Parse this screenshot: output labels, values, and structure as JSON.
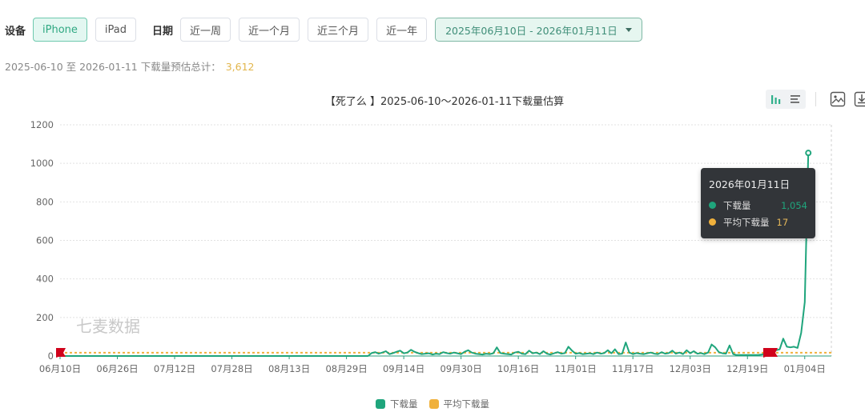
{
  "filters": {
    "device_label": "设备",
    "devices": [
      {
        "label": "iPhone",
        "active": true
      },
      {
        "label": "iPad",
        "active": false
      }
    ],
    "date_label": "日期",
    "date_presets": [
      {
        "label": "近一周"
      },
      {
        "label": "近一个月"
      },
      {
        "label": "近三个月"
      },
      {
        "label": "近一年"
      }
    ],
    "date_range": "2025年06月10日 - 2026年01月11日"
  },
  "summary": {
    "text": "2025-06-10 至 2026-01-11 下载量预估总计：",
    "total": "3,612"
  },
  "toolbar": {
    "icons": [
      "bar-chart-icon",
      "list-icon",
      "image-icon",
      "download-icon"
    ]
  },
  "tooltip": {
    "date": "2026年01月11日",
    "rows": [
      {
        "label": "下载量",
        "value": "1,054",
        "color": "#1fa57c"
      },
      {
        "label": "平均下载量",
        "value": "17",
        "color": "#f0b13c"
      }
    ]
  },
  "watermark": "七麦数据",
  "colors": {
    "downloads": "#1fa57c",
    "average": "#f0b13c",
    "accent": "#2fa882",
    "flag": "#d0021b"
  },
  "chart_data": {
    "type": "line",
    "title": "【死了么 】2025-06-10～2026-01-11下载量估算",
    "xlabel": "",
    "ylabel": "",
    "ylim": [
      0,
      1200
    ],
    "yticks": [
      0,
      200,
      400,
      600,
      800,
      1000,
      1200
    ],
    "xticks": [
      "06月10日",
      "06月26日",
      "07月12日",
      "07月28日",
      "08月13日",
      "08月29日",
      "09月14日",
      "09月30日",
      "10月16日",
      "11月01日",
      "11月17日",
      "12月03日",
      "12月19日",
      "01月04日"
    ],
    "grid": true,
    "legend_position": "bottom",
    "legend": [
      "下载量",
      "平均下载量"
    ],
    "x_start": "2025-06-10",
    "x_end": "2026-01-11",
    "series": [
      {
        "name": "下载量",
        "note": "daily values; index 0 = 2025-06-10",
        "values": [
          0,
          0,
          0,
          0,
          0,
          0,
          0,
          0,
          0,
          0,
          0,
          0,
          0,
          0,
          0,
          0,
          0,
          0,
          0,
          0,
          0,
          0,
          0,
          0,
          0,
          0,
          0,
          0,
          0,
          0,
          0,
          0,
          0,
          0,
          0,
          0,
          0,
          0,
          0,
          0,
          0,
          0,
          0,
          0,
          0,
          0,
          0,
          0,
          0,
          0,
          0,
          0,
          0,
          0,
          0,
          0,
          0,
          0,
          0,
          0,
          0,
          0,
          0,
          0,
          0,
          0,
          0,
          0,
          0,
          0,
          0,
          0,
          0,
          0,
          0,
          0,
          0,
          0,
          0,
          0,
          0,
          0,
          0,
          0,
          0,
          0,
          0,
          15,
          20,
          12,
          18,
          25,
          10,
          15,
          22,
          28,
          14,
          18,
          32,
          22,
          15,
          10,
          12,
          14,
          8,
          12,
          10,
          20,
          15,
          12,
          18,
          14,
          10,
          22,
          30,
          18,
          12,
          10,
          8,
          12,
          10,
          14,
          45,
          15,
          12,
          10,
          8,
          18,
          22,
          12,
          10,
          28,
          14,
          18,
          10,
          25,
          12,
          8,
          14,
          20,
          12,
          15,
          48,
          28,
          12,
          15,
          10,
          12,
          14,
          10,
          18,
          12,
          15,
          30,
          14,
          35,
          10,
          12,
          70,
          18,
          10,
          15,
          12,
          10,
          14,
          18,
          12,
          10,
          20,
          12,
          15,
          28,
          12,
          18,
          10,
          30,
          14,
          25,
          12,
          15,
          10,
          18,
          60,
          45,
          20,
          14,
          12,
          55,
          10,
          5,
          5,
          5,
          5,
          5,
          5,
          5,
          8,
          12,
          18,
          25,
          30,
          35,
          90,
          48,
          45,
          48,
          42,
          120,
          280,
          1054
        ]
      },
      {
        "name": "平均下载量",
        "values_constant": 17
      }
    ],
    "markers": [
      {
        "type": "flag",
        "date": "06月10日"
      },
      {
        "type": "flag",
        "date": "12月25日"
      }
    ],
    "highlight_point": {
      "date": "2026-01-11",
      "value": 1054
    }
  },
  "legend": [
    {
      "label": "下载量"
    },
    {
      "label": "平均下载量"
    }
  ]
}
